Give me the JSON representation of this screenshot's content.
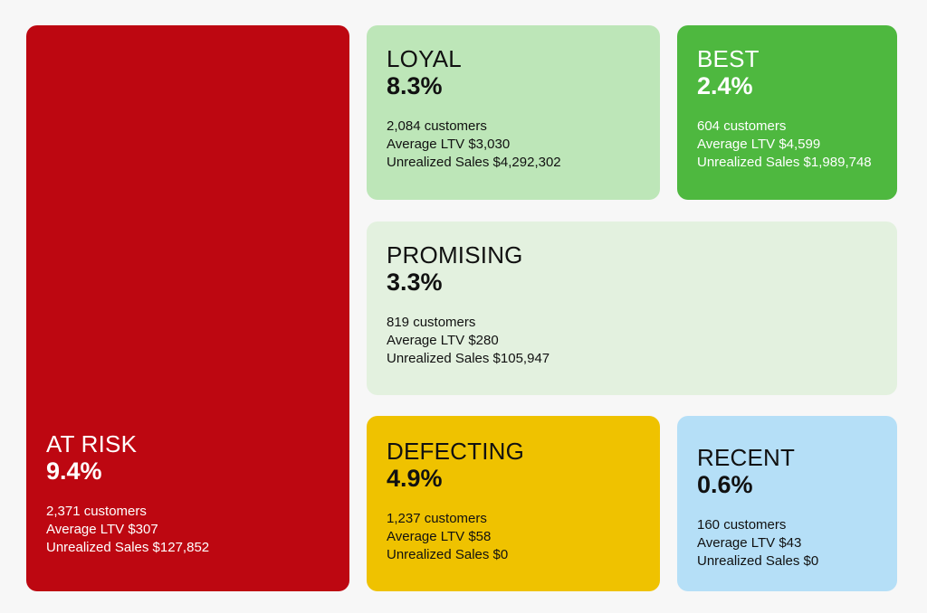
{
  "colors": {
    "background": "#f7f7f7",
    "at_risk": "#bd0711",
    "loyal": "#bde6b8",
    "best": "#4eb83f",
    "promising": "#e3f1df",
    "defecting": "#efc200",
    "recent": "#b5dff7"
  },
  "chart_data": {
    "type": "treemap",
    "segments": [
      {
        "key": "at_risk",
        "name": "AT RISK",
        "percent_label": "9.4%",
        "percent": 9.4,
        "customers_label": "2,371 customers",
        "customers": 2371,
        "ltv_label": "Average LTV $307",
        "average_ltv": 307,
        "sales_label": "Unrealized Sales $127,852",
        "unrealized_sales": 127852
      },
      {
        "key": "loyal",
        "name": "LOYAL",
        "percent_label": "8.3%",
        "percent": 8.3,
        "customers_label": "2,084 customers",
        "customers": 2084,
        "ltv_label": "Average LTV $3,030",
        "average_ltv": 3030,
        "sales_label": "Unrealized Sales $4,292,302",
        "unrealized_sales": 4292302
      },
      {
        "key": "best",
        "name": "BEST",
        "percent_label": "2.4%",
        "percent": 2.4,
        "customers_label": "604 customers",
        "customers": 604,
        "ltv_label": "Average LTV $4,599",
        "average_ltv": 4599,
        "sales_label": "Unrealized Sales $1,989,748",
        "unrealized_sales": 1989748
      },
      {
        "key": "promising",
        "name": "PROMISING",
        "percent_label": "3.3%",
        "percent": 3.3,
        "customers_label": "819 customers",
        "customers": 819,
        "ltv_label": "Average LTV $280",
        "average_ltv": 280,
        "sales_label": "Unrealized Sales $105,947",
        "unrealized_sales": 105947
      },
      {
        "key": "defecting",
        "name": "DEFECTING",
        "percent_label": "4.9%",
        "percent": 4.9,
        "customers_label": "1,237 customers",
        "customers": 1237,
        "ltv_label": "Average LTV $58",
        "average_ltv": 58,
        "sales_label": "Unrealized Sales $0",
        "unrealized_sales": 0
      },
      {
        "key": "recent",
        "name": "RECENT",
        "percent_label": "0.6%",
        "percent": 0.6,
        "customers_label": "160 customers",
        "customers": 160,
        "ltv_label": "Average LTV $43",
        "average_ltv": 43,
        "sales_label": "Unrealized Sales $0",
        "unrealized_sales": 0
      }
    ]
  }
}
